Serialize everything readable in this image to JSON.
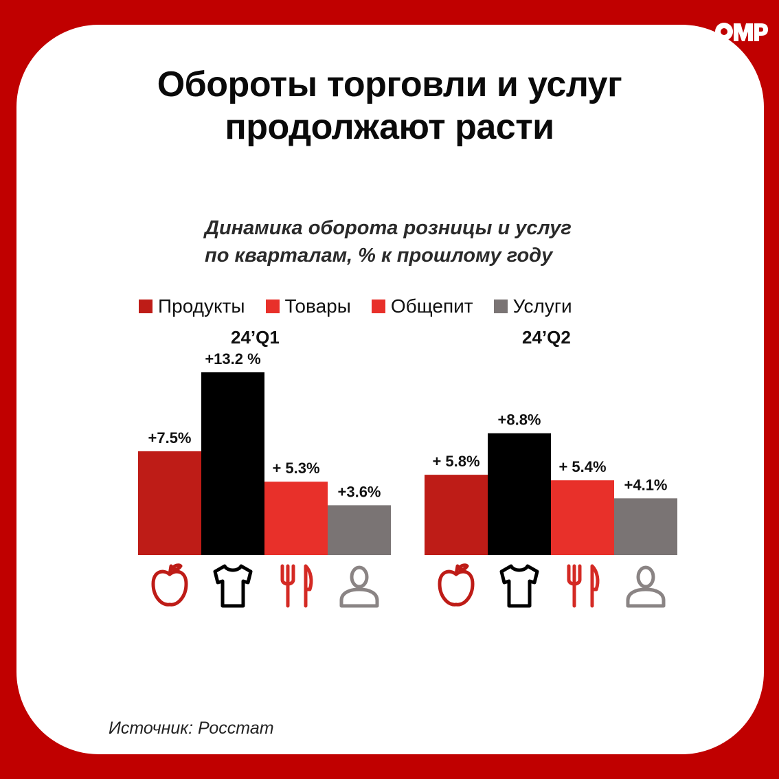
{
  "logo": {
    "text": "OMP"
  },
  "title": {
    "line1": "Обороты торговли и услуг",
    "line2": "продолжают расти"
  },
  "subtitle": {
    "line1": "Динамика оборота розницы и услуг",
    "line2": "по кварталам, % к прошлому году"
  },
  "legend": [
    {
      "label": "Продукты",
      "color": "#be1c17"
    },
    {
      "label": "Товары",
      "color": "#e8302a"
    },
    {
      "label": "Общепит",
      "color": "#e8302a"
    },
    {
      "label": "Услуги",
      "color": "#7a7474"
    }
  ],
  "source": "Источник: Росстат",
  "chart_data": {
    "type": "bar",
    "title": "Динамика оборота розницы и услуг по кварталам, % к прошлому году",
    "categories": [
      "24’Q1",
      "24’Q2"
    ],
    "ylim": [
      0,
      13.2
    ],
    "grid": false,
    "legend_position": "top",
    "series": [
      {
        "name": "Продукты",
        "values": [
          7.5,
          5.8
        ],
        "labels": [
          "+7.5%",
          "+ 5.8%"
        ],
        "color": "#be1c17",
        "icon": "apple-icon"
      },
      {
        "name": "Товары",
        "values": [
          13.2,
          8.8
        ],
        "labels": [
          "+13.2 %",
          "+8.8%"
        ],
        "color": "#000000",
        "icon": "tshirt-icon"
      },
      {
        "name": "Общепит",
        "values": [
          5.3,
          5.4
        ],
        "labels": [
          "+ 5.3%",
          "+ 5.4%"
        ],
        "color": "#e8302a",
        "icon": "fork-knife-icon"
      },
      {
        "name": "Услуги",
        "values": [
          3.6,
          4.1
        ],
        "labels": [
          "+3.6%",
          "+4.1%"
        ],
        "color": "#7a7474",
        "icon": "person-icon"
      }
    ]
  }
}
